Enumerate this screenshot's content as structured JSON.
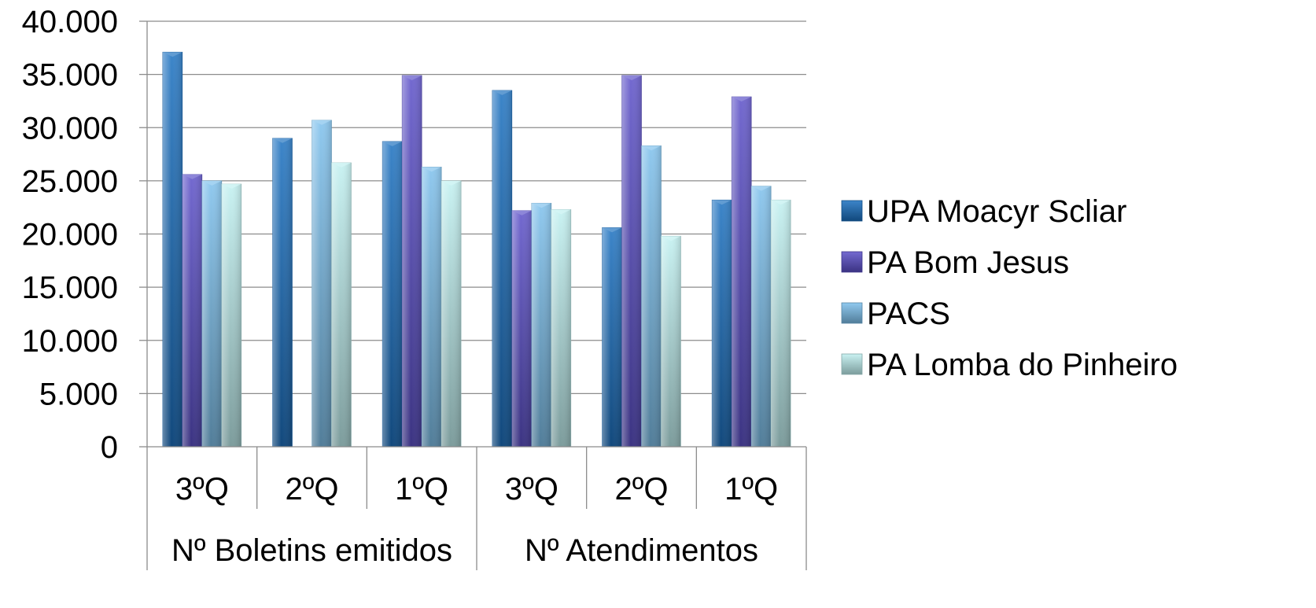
{
  "chart_data": {
    "type": "bar",
    "title": "",
    "xlabel": "",
    "ylabel": "",
    "ylim": [
      0,
      40000
    ],
    "y_ticks": [
      {
        "value": 0,
        "label": "0"
      },
      {
        "value": 5000,
        "label": "5.000"
      },
      {
        "value": 10000,
        "label": "10.000"
      },
      {
        "value": 15000,
        "label": "15.000"
      },
      {
        "value": 20000,
        "label": "20.000"
      },
      {
        "value": 25000,
        "label": "25.000"
      },
      {
        "value": 30000,
        "label": "30.000"
      },
      {
        "value": 35000,
        "label": "35.000"
      },
      {
        "value": 40000,
        "label": "40.000"
      }
    ],
    "grid": true,
    "legend_position": "right",
    "groups": [
      {
        "label": "Nº Boletins emitidos",
        "categories": [
          "3ºQ",
          "2ºQ",
          "1ºQ"
        ]
      },
      {
        "label": "Nº Atendimentos",
        "categories": [
          "3ºQ",
          "2ºQ",
          "1ºQ"
        ]
      }
    ],
    "categories": [
      "3ºQ",
      "2ºQ",
      "1ºQ",
      "3ºQ",
      "2ºQ",
      "1ºQ"
    ],
    "series": [
      {
        "name": "UPA Moacyr Scliar",
        "color": "#1a6fbf",
        "values": [
          37100,
          29000,
          28700,
          33500,
          20600,
          23200
        ]
      },
      {
        "name": "PA Bom Jesus",
        "color": "#5a4fc8",
        "values": [
          25600,
          0,
          34900,
          22200,
          34900,
          32900
        ]
      },
      {
        "name": "PACS",
        "color": "#7cc0ec",
        "values": [
          25000,
          30700,
          26300,
          22900,
          28300,
          24500
        ]
      },
      {
        "name": "PA Lomba do Pinheiro",
        "color": "#bff0f0",
        "values": [
          24700,
          26700,
          25000,
          22300,
          19800,
          23200
        ]
      }
    ]
  }
}
